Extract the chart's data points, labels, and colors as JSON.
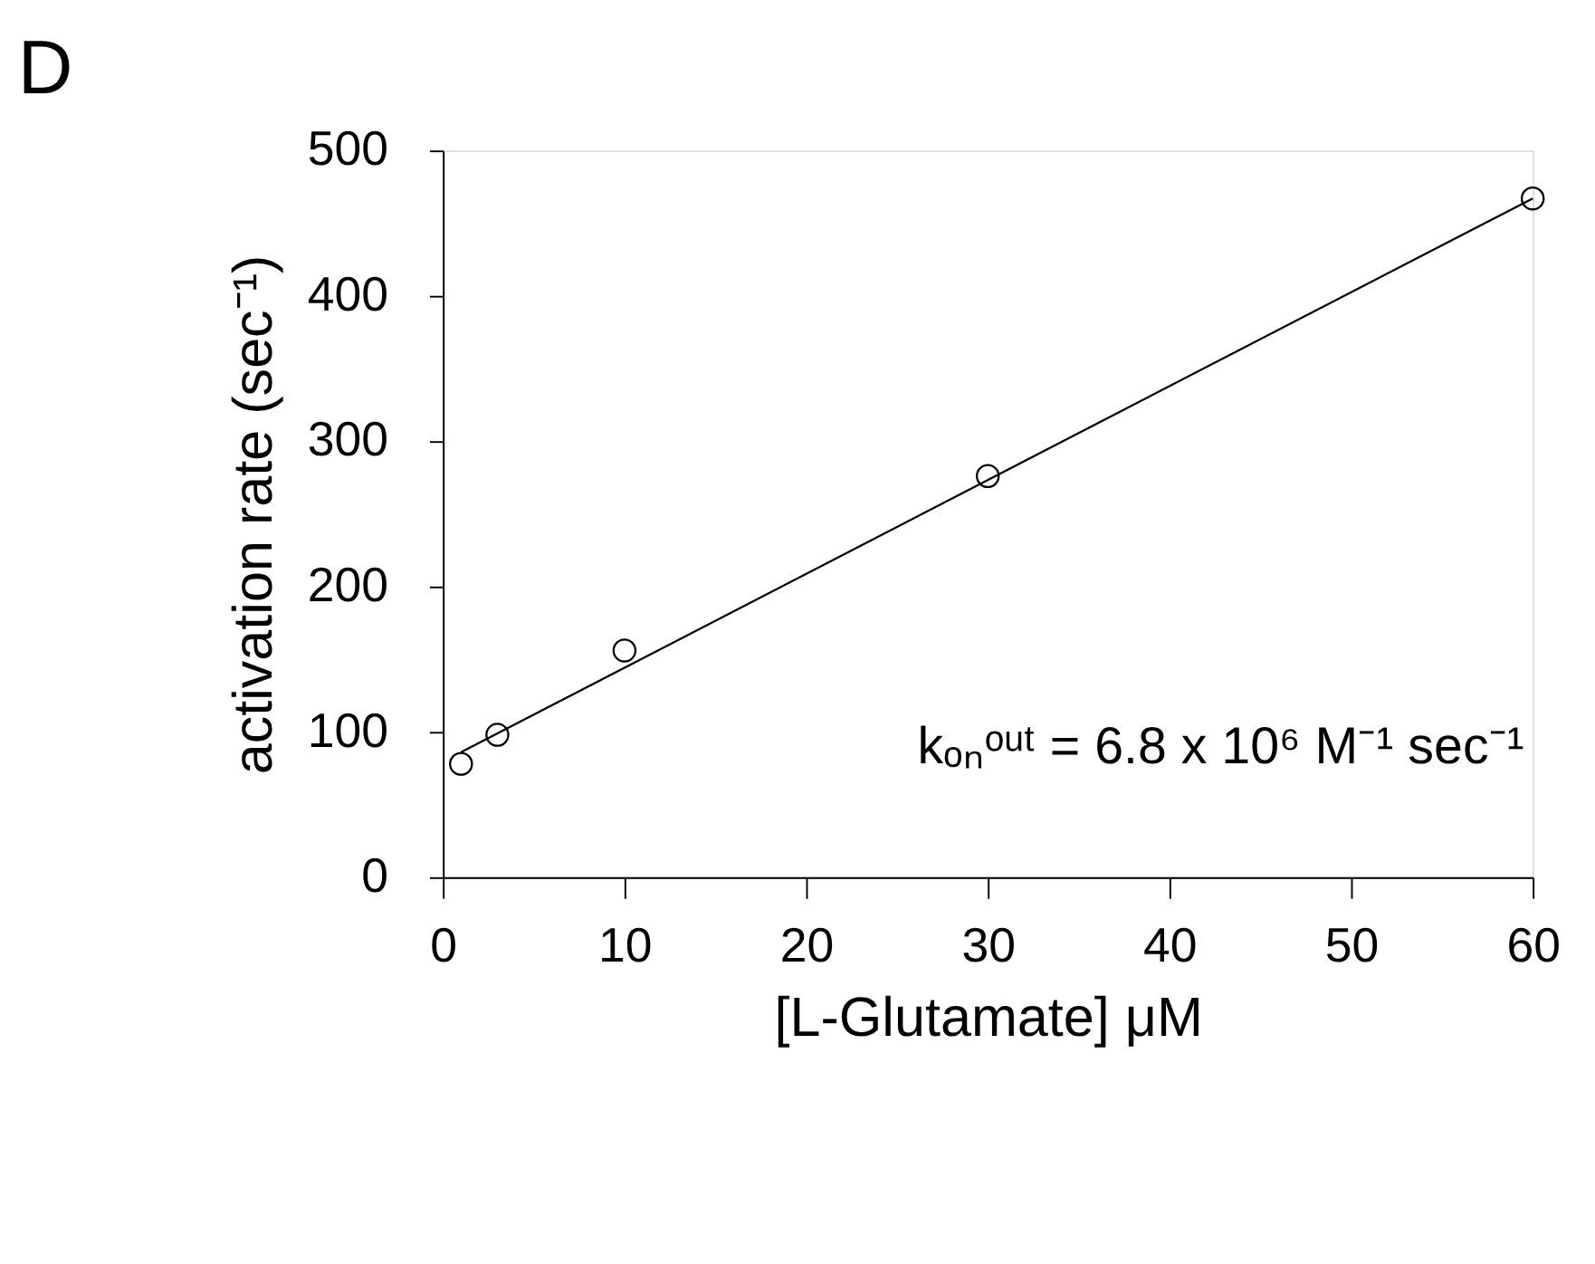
{
  "chart_data": {
    "type": "scatter",
    "title": "D",
    "xlabel": "[L-Glutamate] μM",
    "ylabel": "activation rate (sec⁻¹)",
    "xlim": [
      0,
      60
    ],
    "xticks": [
      0,
      10,
      20,
      30,
      40,
      50,
      60
    ],
    "ylim": [
      0,
      500
    ],
    "yticks": [
      0,
      100,
      200,
      300,
      400,
      500
    ],
    "marker": "circle",
    "annotations": [
      "kₒₙᵒᵘᵗ = 6.8 x 10⁶ M⁻¹ sec⁻¹"
    ],
    "series": [
      {
        "color": "#000000",
        "x": [
          1,
          3,
          10,
          30,
          60
        ],
        "values": [
          78,
          98,
          156,
          276,
          467
        ]
      },
      {
        "type": "line",
        "marker": "none",
        "color": "#000000",
        "x": [
          1,
          60
        ],
        "values": [
          86,
          467
        ]
      }
    ]
  }
}
